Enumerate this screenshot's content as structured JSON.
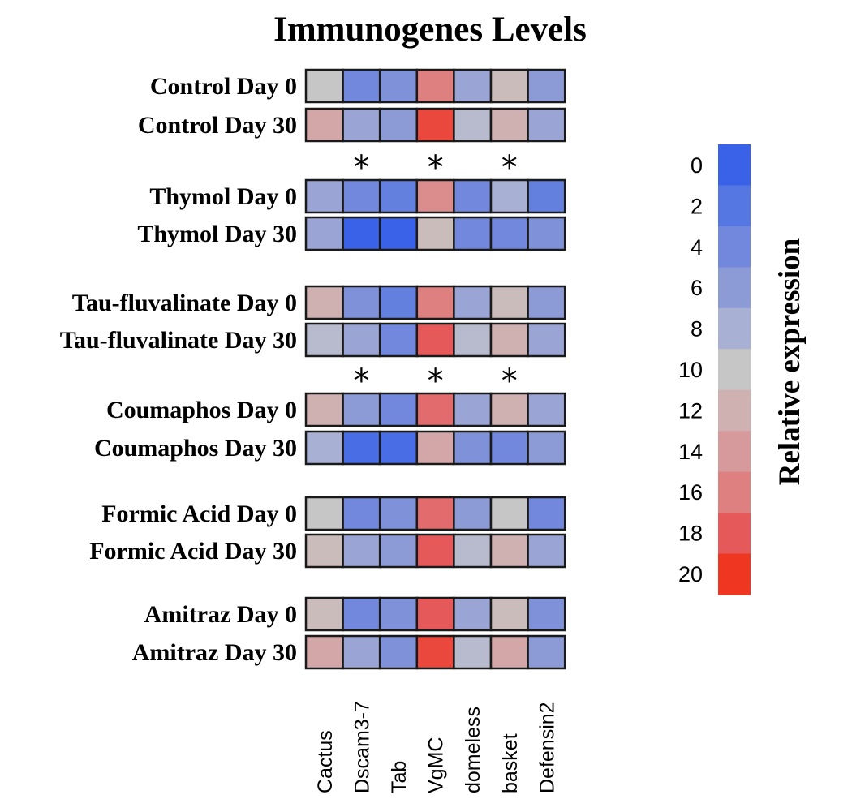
{
  "chart_data": {
    "type": "heatmap",
    "title": "Immunogenes Levels",
    "columns": [
      "Cactus",
      "Dscam3-7",
      "Tab",
      "VgMC",
      "domeless",
      "basket",
      "Defensin2"
    ],
    "rows": [
      {
        "label": "Control Day 0",
        "values": [
          10,
          4,
          5,
          16,
          7,
          11,
          6
        ]
      },
      {
        "label": "Control Day 30",
        "values": [
          13,
          7,
          6,
          19,
          9,
          12,
          7
        ]
      },
      {
        "label": "Thymol Day 0",
        "values": [
          7,
          4,
          3,
          15,
          4,
          8,
          3
        ]
      },
      {
        "label": "Thymol Day 30",
        "values": [
          7,
          0,
          0,
          11,
          4,
          4,
          5
        ]
      },
      {
        "label": "Tau-fluvalinate Day 0",
        "values": [
          12,
          5,
          3,
          16,
          7,
          11,
          6
        ]
      },
      {
        "label": "Tau-fluvalinate Day 30",
        "values": [
          9,
          7,
          4,
          18,
          9,
          12,
          7
        ]
      },
      {
        "label": "Coumaphos Day 0",
        "values": [
          12,
          6,
          4,
          17,
          7,
          12,
          7
        ]
      },
      {
        "label": "Coumaphos Day 30",
        "values": [
          8,
          1,
          1,
          13,
          5,
          4,
          6
        ]
      },
      {
        "label": "Formic Acid Day 0",
        "values": [
          10,
          4,
          5,
          17,
          6,
          10,
          4
        ]
      },
      {
        "label": "Formic Acid Day 30",
        "values": [
          11,
          7,
          6,
          18,
          9,
          12,
          7
        ]
      },
      {
        "label": "Amitraz Day 0",
        "values": [
          11,
          4,
          5,
          18,
          7,
          11,
          5
        ]
      },
      {
        "label": "Amitraz Day 30",
        "values": [
          13,
          7,
          5,
          19,
          9,
          13,
          6
        ]
      }
    ],
    "significance_markers": [
      {
        "above_row": "Thymol Day 0",
        "columns": [
          "Dscam3-7",
          "VgMC",
          "basket"
        ],
        "symbol": "*"
      },
      {
        "above_row": "Coumaphos Day 0",
        "columns": [
          "Dscam3-7",
          "VgMC",
          "basket"
        ],
        "symbol": "*"
      }
    ],
    "colorbar": {
      "title": "Relative expression",
      "range": [
        0,
        20
      ],
      "ticks": [
        "0",
        "2",
        "4",
        "6",
        "8",
        "10",
        "12",
        "14",
        "16",
        "18",
        "20"
      ],
      "colors": [
        "#3a62e8",
        "#5577e2",
        "#7188dc",
        "#8c9ad6",
        "#a8b0d4",
        "#c6c6c6",
        "#cfb1b2",
        "#d79a9c",
        "#de7f80",
        "#e5595a",
        "#ef3620"
      ]
    }
  }
}
